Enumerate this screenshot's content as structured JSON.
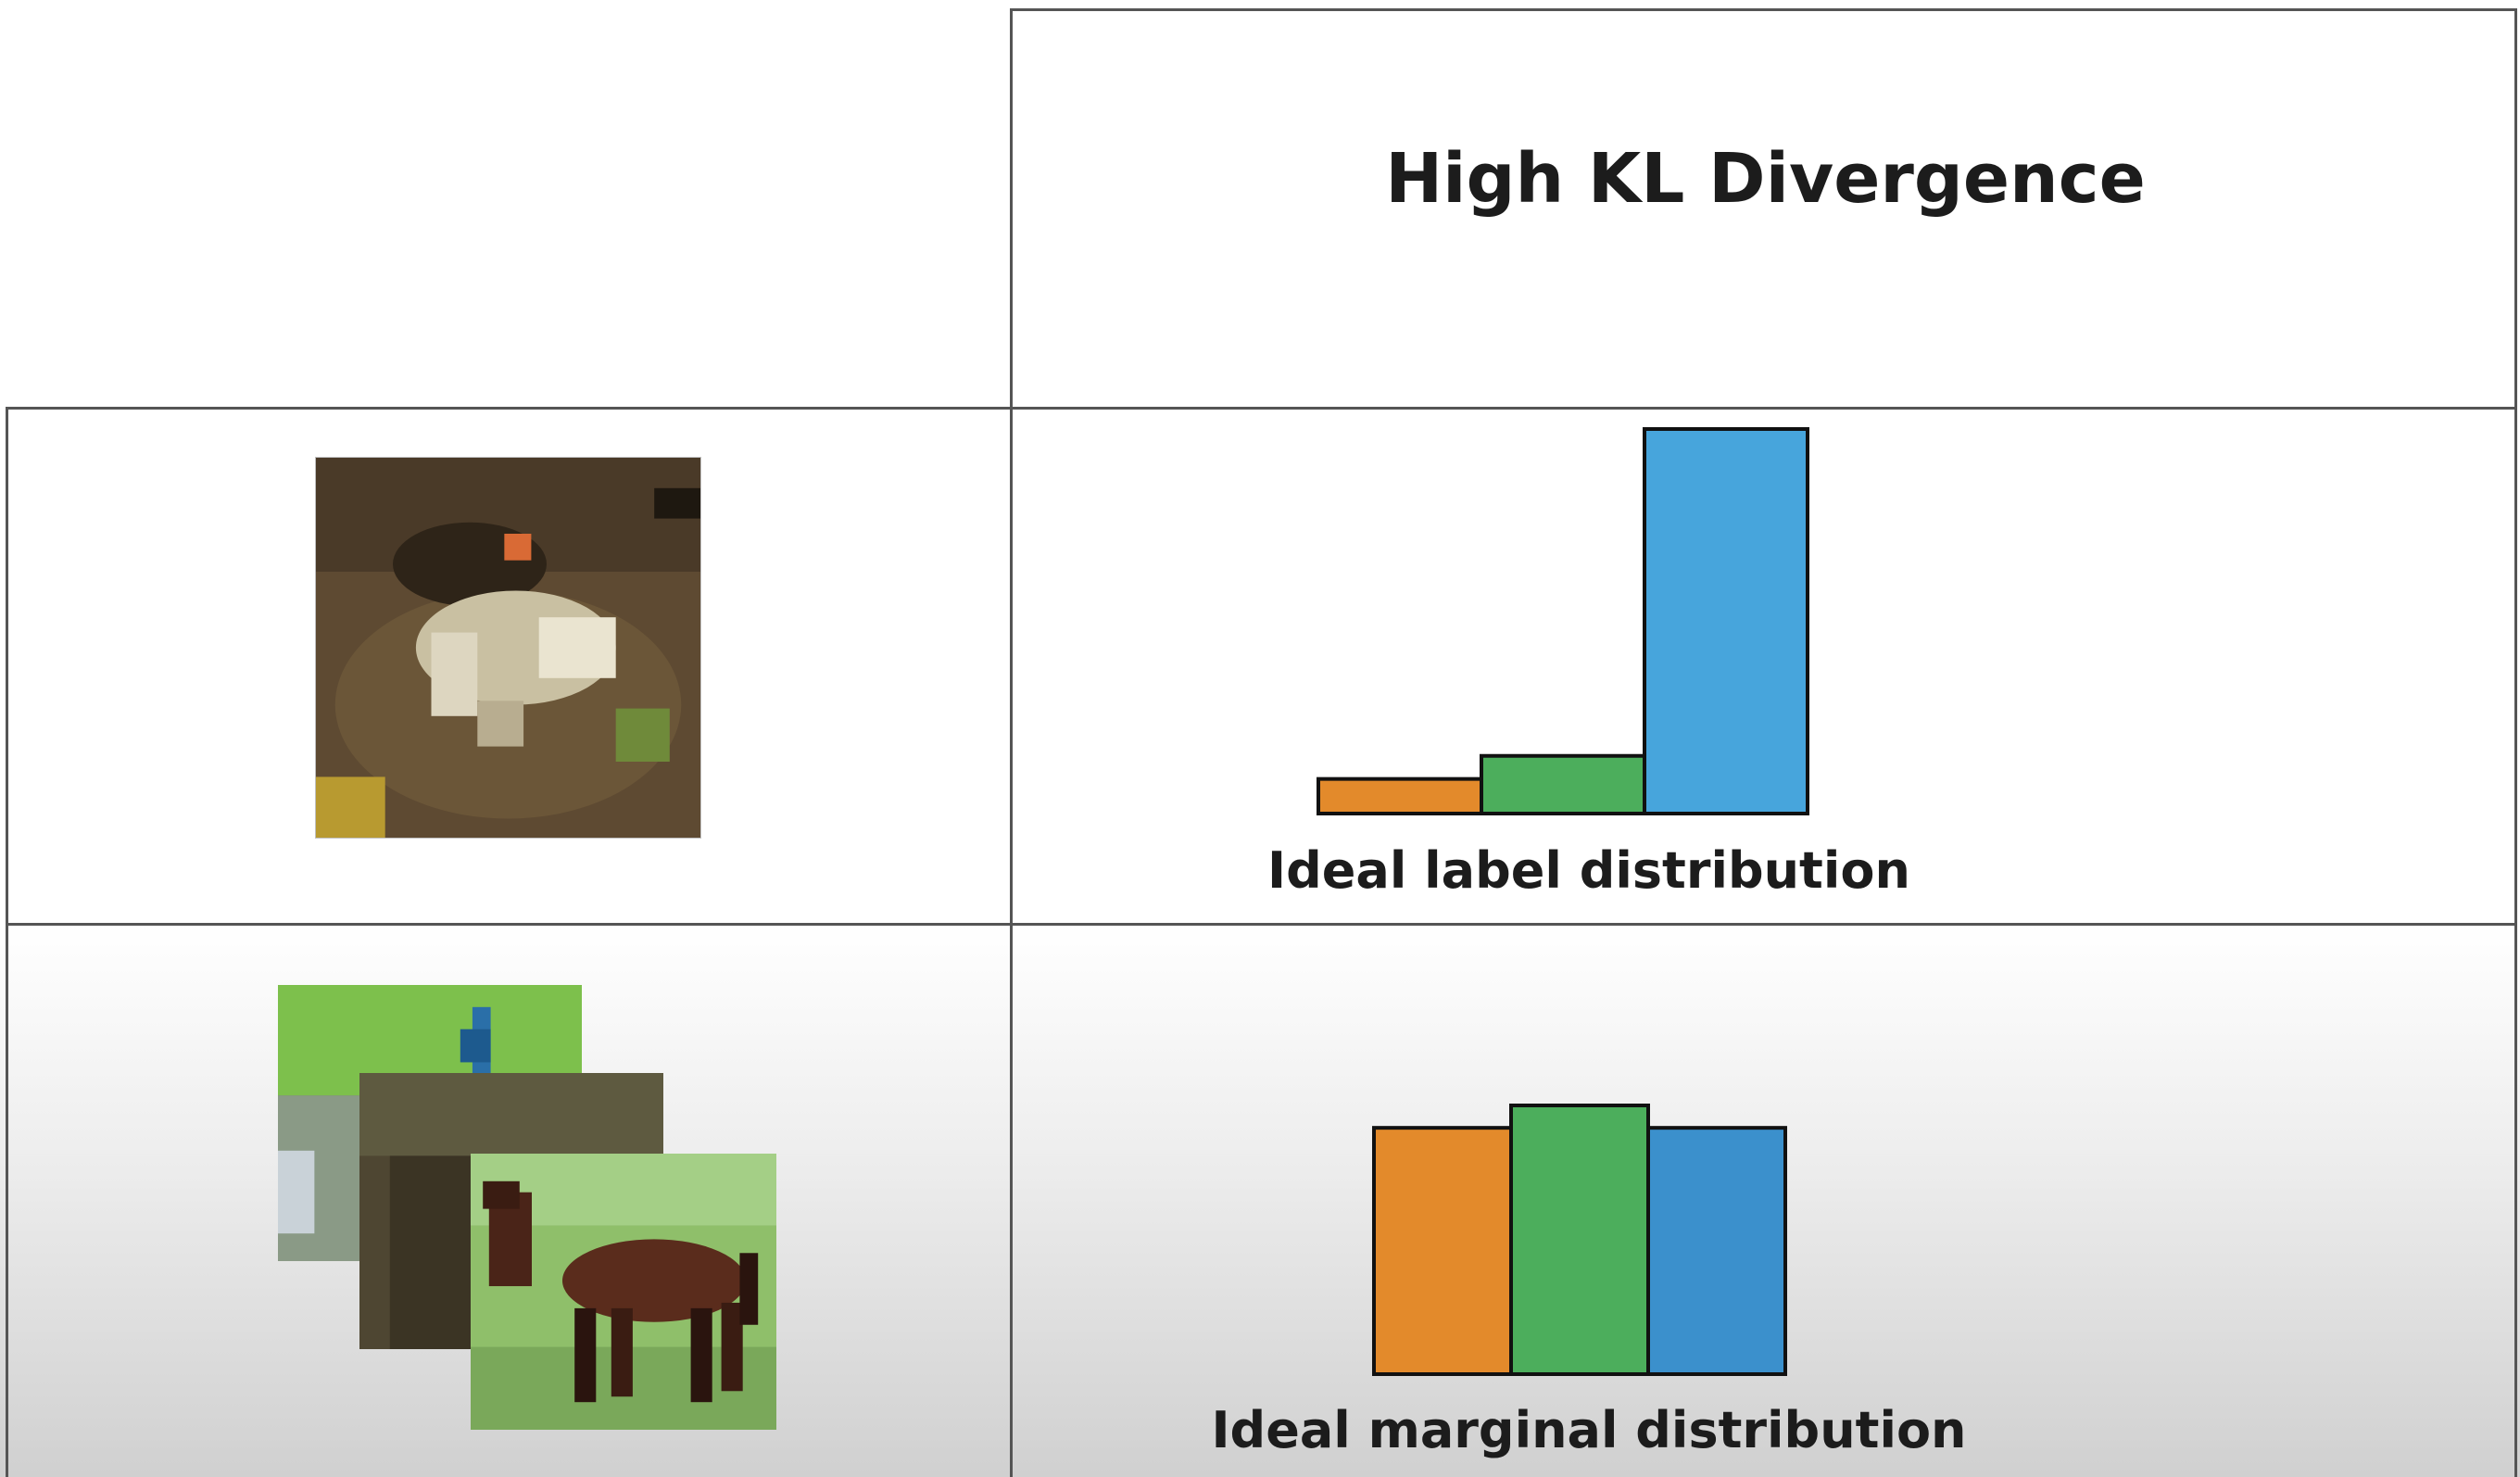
{
  "title": "High KL Divergence",
  "colors": {
    "orange": "#e38a2b",
    "green": "#4cae5c",
    "blue": "#47a5dc",
    "blue_dark": "#3b90cc"
  },
  "images": {
    "single": "frog-icon",
    "stack": [
      "peacock-icon",
      "dog-icon",
      "horse-icon"
    ]
  },
  "chart_data": [
    {
      "type": "bar",
      "xlabel": "Ideal label distribution",
      "categories": [
        "",
        "",
        ""
      ],
      "values": [
        0.09,
        0.15,
        1.0
      ],
      "colors": [
        "#e38a2b",
        "#4cae5c",
        "#47a5dc"
      ],
      "ylim": [
        0,
        1.0
      ]
    },
    {
      "type": "bar",
      "xlabel": "Ideal marginal distribution",
      "categories": [
        "",
        "",
        ""
      ],
      "values": [
        0.33,
        0.36,
        0.33
      ],
      "colors": [
        "#e38a2b",
        "#4cae5c",
        "#3b90cc"
      ],
      "ylim": [
        0,
        0.36
      ]
    }
  ]
}
